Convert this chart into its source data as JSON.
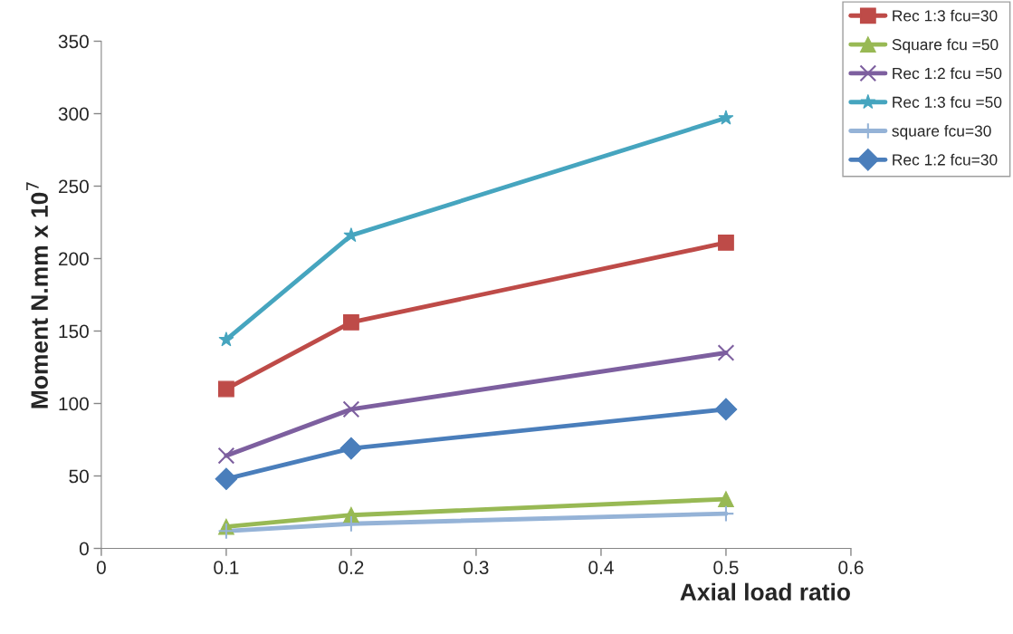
{
  "chart_data": {
    "type": "line",
    "xlabel": "Axial load ratio",
    "ylabel": "Moment N.mm x 10$^{7}$",
    "x": [
      0.1,
      0.2,
      0.5
    ],
    "series": [
      {
        "name": "Rec 1:3 fcu=30",
        "color": "#be4b48",
        "marker": "square",
        "values": [
          110,
          156,
          211
        ]
      },
      {
        "name": "Square fcu =50",
        "color": "#98b954",
        "marker": "triangle",
        "values": [
          15,
          23,
          34
        ]
      },
      {
        "name": "Rec 1:2 fcu =50",
        "color": "#7d5f9f",
        "marker": "cross",
        "values": [
          64,
          96,
          135
        ]
      },
      {
        "name": "Rec 1:3 fcu =50",
        "color": "#46a5bf",
        "marker": "star",
        "values": [
          144,
          216,
          297
        ]
      },
      {
        "name": "square fcu=30",
        "color": "#95b3d7",
        "marker": "plus",
        "values": [
          12,
          17,
          24
        ]
      },
      {
        "name": "Rec 1:2 fcu=30",
        "color": "#4a7ebb",
        "marker": "diamond",
        "values": [
          48,
          69,
          96
        ]
      }
    ],
    "xlim": [
      0,
      0.6
    ],
    "xticks": [
      0,
      0.1,
      0.2,
      0.3,
      0.4,
      0.5,
      0.6
    ],
    "ylim": [
      0,
      350
    ],
    "yticks": [
      0,
      50,
      100,
      150,
      200,
      250,
      300,
      350
    ],
    "grid": false,
    "legend": "top right",
    "line_style": "solid"
  }
}
